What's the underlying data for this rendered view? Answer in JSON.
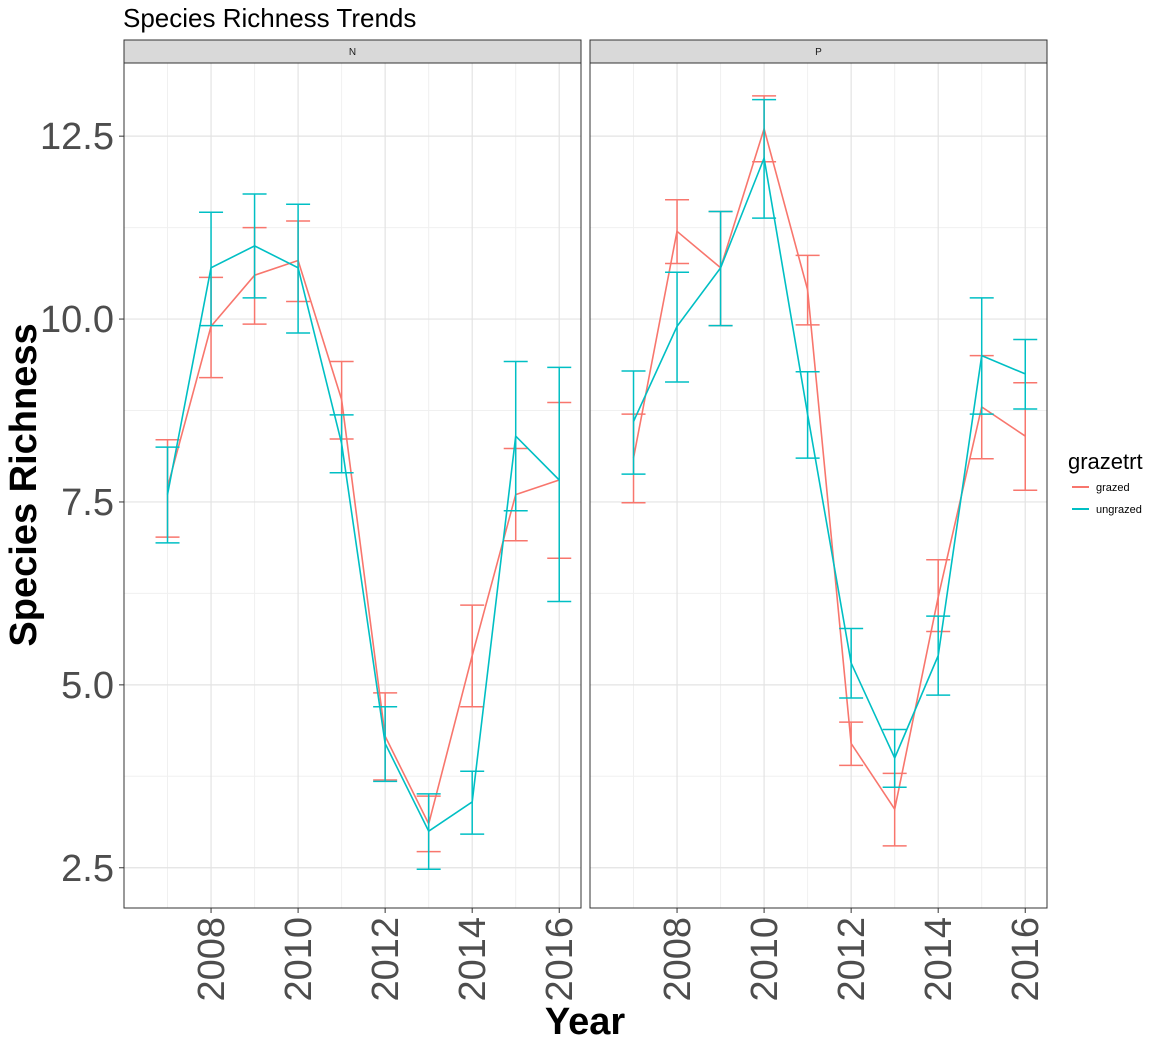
{
  "chart_data": {
    "type": "line",
    "title": "Species Richness Trends",
    "xlabel": "Year",
    "ylabel": "Species Richness",
    "ylim": [
      1.95,
      13.5
    ],
    "xlim": [
      2006,
      2016.5
    ],
    "yticks": [
      2.5,
      5.0,
      7.5,
      10.0,
      12.5
    ],
    "ytick_labels": [
      "2.5",
      "5.0",
      "7.5",
      "10.0",
      "12.5"
    ],
    "xticks": [
      2008,
      2010,
      2012,
      2014,
      2016
    ],
    "xtick_labels": [
      "2008",
      "2010",
      "2012",
      "2014",
      "2016"
    ],
    "grid": true,
    "error_bars": true,
    "legend": {
      "title": "grazetrt",
      "position": "right",
      "entries": [
        {
          "label": "grazed",
          "color": "#F8766D"
        },
        {
          "label": "ungrazed",
          "color": "#00BFC4"
        }
      ]
    },
    "panels": [
      {
        "strip": "N",
        "series": [
          {
            "name": "grazed",
            "color": "#F8766D",
            "points": [
              {
                "x": 2007,
                "y": 7.7,
                "lo": 7.02,
                "hi": 8.35
              },
              {
                "x": 2008,
                "y": 9.9,
                "lo": 9.2,
                "hi": 10.57
              },
              {
                "x": 2009,
                "y": 10.6,
                "lo": 9.93,
                "hi": 11.25
              },
              {
                "x": 2010,
                "y": 10.8,
                "lo": 10.24,
                "hi": 11.34
              },
              {
                "x": 2011,
                "y": 8.9,
                "lo": 8.36,
                "hi": 9.42
              },
              {
                "x": 2012,
                "y": 4.3,
                "lo": 3.7,
                "hi": 4.89
              },
              {
                "x": 2013,
                "y": 3.1,
                "lo": 2.72,
                "hi": 3.48
              },
              {
                "x": 2014,
                "y": 5.4,
                "lo": 4.7,
                "hi": 6.09
              },
              {
                "x": 2015,
                "y": 7.6,
                "lo": 6.97,
                "hi": 8.23
              },
              {
                "x": 2016,
                "y": 7.8,
                "lo": 6.73,
                "hi": 8.86
              }
            ]
          },
          {
            "name": "ungrazed",
            "color": "#00BFC4",
            "points": [
              {
                "x": 2007,
                "y": 7.6,
                "lo": 6.94,
                "hi": 8.25
              },
              {
                "x": 2008,
                "y": 10.7,
                "lo": 9.91,
                "hi": 11.46
              },
              {
                "x": 2009,
                "y": 11.0,
                "lo": 10.29,
                "hi": 11.71
              },
              {
                "x": 2010,
                "y": 10.7,
                "lo": 9.81,
                "hi": 11.57
              },
              {
                "x": 2011,
                "y": 8.3,
                "lo": 7.9,
                "hi": 8.69
              },
              {
                "x": 2012,
                "y": 4.2,
                "lo": 3.68,
                "hi": 4.7
              },
              {
                "x": 2013,
                "y": 3.0,
                "lo": 2.48,
                "hi": 3.51
              },
              {
                "x": 2014,
                "y": 3.4,
                "lo": 2.96,
                "hi": 3.82
              },
              {
                "x": 2015,
                "y": 8.4,
                "lo": 7.38,
                "hi": 9.42
              },
              {
                "x": 2016,
                "y": 7.8,
                "lo": 6.14,
                "hi": 9.34
              }
            ]
          }
        ]
      },
      {
        "strip": "P",
        "series": [
          {
            "name": "grazed",
            "color": "#F8766D",
            "points": [
              {
                "x": 2007,
                "y": 8.1,
                "lo": 7.49,
                "hi": 8.7
              },
              {
                "x": 2008,
                "y": 11.2,
                "lo": 10.76,
                "hi": 11.63
              },
              {
                "x": 2009,
                "y": 10.7,
                "lo": 9.91,
                "hi": 11.47
              },
              {
                "x": 2010,
                "y": 12.6,
                "lo": 12.15,
                "hi": 13.05
              },
              {
                "x": 2011,
                "y": 10.4,
                "lo": 9.92,
                "hi": 10.87
              },
              {
                "x": 2012,
                "y": 4.2,
                "lo": 3.9,
                "hi": 4.49
              },
              {
                "x": 2013,
                "y": 3.3,
                "lo": 2.8,
                "hi": 3.79
              },
              {
                "x": 2014,
                "y": 6.2,
                "lo": 5.73,
                "hi": 6.71
              },
              {
                "x": 2015,
                "y": 8.8,
                "lo": 8.09,
                "hi": 9.5
              },
              {
                "x": 2016,
                "y": 8.4,
                "lo": 7.66,
                "hi": 9.13
              }
            ]
          },
          {
            "name": "ungrazed",
            "color": "#00BFC4",
            "points": [
              {
                "x": 2007,
                "y": 8.6,
                "lo": 7.88,
                "hi": 9.29
              },
              {
                "x": 2008,
                "y": 9.9,
                "lo": 9.14,
                "hi": 10.64
              },
              {
                "x": 2009,
                "y": 10.7,
                "lo": 9.91,
                "hi": 11.47
              },
              {
                "x": 2010,
                "y": 12.2,
                "lo": 11.38,
                "hi": 13.0
              },
              {
                "x": 2011,
                "y": 8.7,
                "lo": 8.1,
                "hi": 9.28
              },
              {
                "x": 2012,
                "y": 5.3,
                "lo": 4.82,
                "hi": 5.77
              },
              {
                "x": 2013,
                "y": 4.0,
                "lo": 3.6,
                "hi": 4.39
              },
              {
                "x": 2014,
                "y": 5.4,
                "lo": 4.86,
                "hi": 5.94
              },
              {
                "x": 2015,
                "y": 9.5,
                "lo": 8.7,
                "hi": 10.29
              },
              {
                "x": 2016,
                "y": 9.25,
                "lo": 8.77,
                "hi": 9.72
              }
            ]
          }
        ]
      }
    ]
  }
}
